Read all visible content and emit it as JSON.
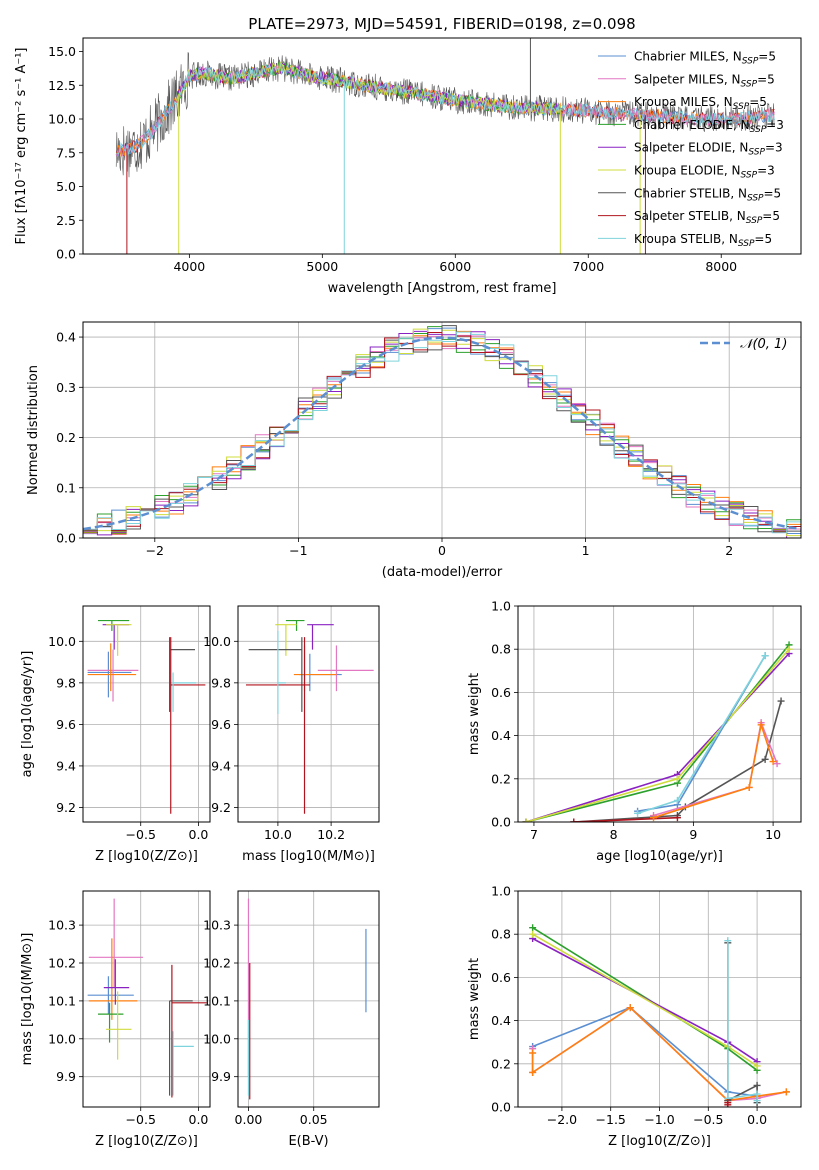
{
  "colors": {
    "Chabrier MILES": "#5b8fd1",
    "Salpeter MILES": "#e377c2",
    "Kroupa MILES": "#ff7f0e",
    "Chabrier ELODIE": "#2ca02c",
    "Salpeter ELODIE": "#8a22c2",
    "Kroupa ELODIE": "#cfdc3c",
    "Chabrier STELIB": "#555555",
    "Salpeter STELIB": "#b0141e",
    "Kroupa STELIB": "#7fd3dc"
  },
  "chart_data": [
    {
      "id": "spectrum",
      "type": "line",
      "title": "PLATE=2973, MJD=54591, FIBERID=0198, z=0.098",
      "xlabel": "wavelength [Angstrom, rest frame]",
      "ylabel": "Flux [fλ10⁻¹⁷ erg cm⁻² s⁻¹ A⁻¹]",
      "xlim": [
        3200,
        8600
      ],
      "ylim": [
        0,
        16
      ],
      "xticks": [
        4000,
        5000,
        6000,
        7000,
        8000
      ],
      "yticks": [
        0.0,
        2.5,
        5.0,
        7.5,
        10.0,
        12.5,
        15.0
      ],
      "grid": false,
      "legend_position": "upper right",
      "legend": [
        "Chabrier MILES, N_SSP=5",
        "Salpeter MILES, N_SSP=5",
        "Kroupa MILES, N_SSP=5",
        "Chabrier ELODIE, N_SSP=3",
        "Salpeter ELODIE, N_SSP=3",
        "Kroupa ELODIE, N_SSP=3",
        "Chabrier STELIB, N_SSP=5",
        "Salpeter STELIB, N_SSP=5",
        "Kroupa STELIB, N_SSP=5"
      ],
      "continuum": [
        [
          3450,
          7.6
        ],
        [
          3600,
          8.0
        ],
        [
          3700,
          8.8
        ],
        [
          3800,
          10.2
        ],
        [
          3900,
          11.5
        ],
        [
          4000,
          13.2
        ],
        [
          4100,
          13.4
        ],
        [
          4300,
          13.0
        ],
        [
          4500,
          13.4
        ],
        [
          4700,
          13.8
        ],
        [
          4900,
          13.2
        ],
        [
          5100,
          12.9
        ],
        [
          5300,
          12.5
        ],
        [
          5500,
          12.2
        ],
        [
          5700,
          11.9
        ],
        [
          6000,
          11.4
        ],
        [
          6300,
          11.0
        ],
        [
          6600,
          10.8
        ],
        [
          7000,
          10.6
        ],
        [
          7400,
          10.3
        ],
        [
          7800,
          10.0
        ],
        [
          8100,
          10.0
        ],
        [
          8400,
          10.3
        ]
      ],
      "features": [
        {
          "series": "Salpeter STELIB",
          "wl": 3530,
          "depth_to": 0
        },
        {
          "series": "Kroupa ELODIE",
          "wl": 3920,
          "depth_to": 0
        },
        {
          "series": "Kroupa STELIB",
          "wl": 5165,
          "depth_to": 0
        },
        {
          "series": "Kroupa ELODIE",
          "wl": 6790,
          "depth_to": 0
        },
        {
          "series": "Kroupa ELODIE",
          "wl": 7390,
          "depth_to": 0
        },
        {
          "series": "Salpeter STELIB",
          "wl": 7430,
          "depth_to": 0
        },
        {
          "series": "Chabrier STELIB",
          "wl": 6565,
          "depth_to": 16
        }
      ]
    },
    {
      "id": "residuals",
      "type": "step",
      "xlabel": "(data-model)/error",
      "ylabel": "Normed distribution",
      "xlim": [
        -2.5,
        2.5
      ],
      "ylim": [
        0,
        0.43
      ],
      "xticks": [
        -2,
        -1,
        0,
        1,
        2
      ],
      "yticks": [
        0.0,
        0.1,
        0.2,
        0.3,
        0.4
      ],
      "grid": true,
      "legend_position": "upper right",
      "reference": {
        "label": "𝒩(0, 1)",
        "mean": 0,
        "sigma": 1,
        "color": "#5b8fd1"
      }
    },
    {
      "id": "age-vs-Z",
      "type": "errorbar",
      "xlabel": "Z [log10(Z/Z⊙)]",
      "ylabel": "age  [log10(age/yr)]",
      "xlim": [
        -1.0,
        0.1
      ],
      "ylim": [
        9.13,
        10.17
      ],
      "xticks": [
        -0.5,
        0.0
      ],
      "yticks": [
        9.2,
        9.4,
        9.6,
        9.8,
        10.0
      ],
      "grid": true,
      "points": [
        {
          "series": "Chabrier MILES",
          "x": -0.78,
          "y": 9.85,
          "xerr": [
            0.18,
            0.2
          ],
          "yerr": [
            0.12,
            0.1
          ]
        },
        {
          "series": "Salpeter MILES",
          "x": -0.74,
          "y": 9.86,
          "xerr": [
            0.22,
            0.22
          ],
          "yerr": [
            0.15,
            0.1
          ]
        },
        {
          "series": "Kroupa MILES",
          "x": -0.76,
          "y": 9.84,
          "xerr": [
            0.2,
            0.22
          ],
          "yerr": [
            0.08,
            0.15
          ]
        },
        {
          "series": "Chabrier ELODIE",
          "x": -0.75,
          "y": 10.1,
          "xerr": [
            0.12,
            0.15
          ],
          "yerr": [
            0.05,
            0.0
          ]
        },
        {
          "series": "Salpeter ELODIE",
          "x": -0.73,
          "y": 10.08,
          "xerr": [
            0.1,
            0.13
          ],
          "yerr": [
            0.12,
            0.0
          ]
        },
        {
          "series": "Kroupa ELODIE",
          "x": -0.7,
          "y": 10.08,
          "xerr": [
            0.1,
            0.12
          ],
          "yerr": [
            0.15,
            0.0
          ]
        },
        {
          "series": "Chabrier STELIB",
          "x": -0.25,
          "y": 9.96,
          "xerr": [
            0.0,
            0.22
          ],
          "yerr": [
            0.3,
            0.06
          ]
        },
        {
          "series": "Salpeter STELIB",
          "x": -0.24,
          "y": 9.79,
          "xerr": [
            0.0,
            0.3
          ],
          "yerr": [
            0.62,
            0.23
          ]
        },
        {
          "series": "Kroupa STELIB",
          "x": -0.22,
          "y": 9.8,
          "xerr": [
            0.0,
            0.2
          ],
          "yerr": [
            0.14,
            0.05
          ]
        }
      ]
    },
    {
      "id": "age-vs-mass",
      "type": "errorbar",
      "xlabel": "mass [log10(M/M⊙)]",
      "ylabel": "",
      "xlim": [
        9.85,
        10.38
      ],
      "ylim": [
        9.13,
        10.17
      ],
      "xticks": [
        10.0,
        10.2
      ],
      "yticks": [
        9.2,
        9.4,
        9.6,
        9.8,
        10.0
      ],
      "grid": true,
      "points": [
        {
          "series": "Chabrier MILES",
          "x": 10.12,
          "y": 9.84,
          "xerr": [
            0.04,
            0.12
          ],
          "yerr": [
            0.08,
            0.1
          ]
        },
        {
          "series": "Salpeter MILES",
          "x": 10.22,
          "y": 9.86,
          "xerr": [
            0.07,
            0.14
          ],
          "yerr": [
            0.1,
            0.12
          ]
        },
        {
          "series": "Kroupa MILES",
          "x": 10.1,
          "y": 9.84,
          "xerr": [
            0.04,
            0.12
          ],
          "yerr": [
            0.08,
            0.14
          ]
        },
        {
          "series": "Chabrier ELODIE",
          "x": 10.07,
          "y": 10.1,
          "xerr": [
            0.04,
            0.03
          ],
          "yerr": [
            0.05,
            0.0
          ]
        },
        {
          "series": "Salpeter ELODIE",
          "x": 10.13,
          "y": 10.08,
          "xerr": [
            0.02,
            0.08
          ],
          "yerr": [
            0.12,
            0.0
          ]
        },
        {
          "series": "Kroupa ELODIE",
          "x": 10.03,
          "y": 10.08,
          "xerr": [
            0.04,
            0.04
          ],
          "yerr": [
            0.15,
            0.0
          ]
        },
        {
          "series": "Chabrier STELIB",
          "x": 10.09,
          "y": 9.96,
          "xerr": [
            0.2,
            0.0
          ],
          "yerr": [
            0.3,
            0.06
          ]
        },
        {
          "series": "Salpeter STELIB",
          "x": 10.1,
          "y": 9.79,
          "xerr": [
            0.22,
            0.02
          ],
          "yerr": [
            0.62,
            0.23
          ]
        },
        {
          "series": "Kroupa STELIB",
          "x": 10.0,
          "y": 9.8,
          "xerr": [
            0.0,
            0.03
          ],
          "yerr": [
            0.15,
            0.25
          ]
        }
      ]
    },
    {
      "id": "mw-vs-age",
      "type": "line",
      "xlabel": "age  [log10(age/yr)]",
      "ylabel": "mass weight",
      "xlim": [
        6.8,
        10.35
      ],
      "ylim": [
        0,
        1.0
      ],
      "xticks": [
        7,
        8,
        9,
        10
      ],
      "yticks": [
        0.0,
        0.2,
        0.4,
        0.6,
        0.8,
        1.0
      ],
      "grid": true,
      "series": [
        {
          "name": "Chabrier ELODIE",
          "x": [
            6.9,
            8.8,
            10.2
          ],
          "y": [
            0.0,
            0.18,
            0.82
          ]
        },
        {
          "name": "Salpeter ELODIE",
          "x": [
            6.9,
            8.8,
            10.2
          ],
          "y": [
            0.0,
            0.22,
            0.78
          ]
        },
        {
          "name": "Kroupa ELODIE",
          "x": [
            6.9,
            8.8,
            10.2
          ],
          "y": [
            0.0,
            0.2,
            0.8
          ]
        },
        {
          "name": "Chabrier MILES",
          "x": [
            8.3,
            8.8,
            9.9
          ],
          "y": [
            0.05,
            0.08,
            0.77
          ]
        },
        {
          "name": "Kroupa STELIB",
          "x": [
            8.3,
            8.8,
            9.9
          ],
          "y": [
            0.04,
            0.1,
            0.77
          ]
        },
        {
          "name": "Chabrier STELIB",
          "x": [
            7.5,
            8.8,
            8.9,
            9.9,
            10.1
          ],
          "y": [
            0.0,
            0.03,
            0.07,
            0.29,
            0.56
          ]
        },
        {
          "name": "Salpeter STELIB",
          "x": [
            7.5,
            8.8
          ],
          "y": [
            0.0,
            0.02
          ]
        },
        {
          "name": "Salpeter MILES",
          "x": [
            8.5,
            9.7,
            9.85,
            10.05
          ],
          "y": [
            0.03,
            0.16,
            0.46,
            0.27
          ]
        },
        {
          "name": "Kroupa MILES",
          "x": [
            8.5,
            9.7,
            9.85,
            10.0
          ],
          "y": [
            0.02,
            0.16,
            0.45,
            0.28
          ]
        }
      ]
    },
    {
      "id": "mass-vs-Z",
      "type": "errorbar",
      "xlabel": "Z [log10(Z/Z⊙)]",
      "ylabel": "mass [log10(M/M⊙)]",
      "xlim": [
        -1.0,
        0.1
      ],
      "ylim": [
        9.82,
        10.39
      ],
      "xticks": [
        -0.5,
        0.0
      ],
      "yticks": [
        9.9,
        10.0,
        10.1,
        10.2,
        10.3
      ],
      "grid": true,
      "points": [
        {
          "series": "Chabrier MILES",
          "x": -0.78,
          "y": 10.115,
          "xerr": [
            0.18,
            0.22
          ],
          "yerr": [
            0.05,
            0.05
          ]
        },
        {
          "series": "Salpeter MILES",
          "x": -0.73,
          "y": 10.215,
          "xerr": [
            0.22,
            0.25
          ],
          "yerr": [
            0.08,
            0.155
          ]
        },
        {
          "series": "Kroupa MILES",
          "x": -0.75,
          "y": 10.1,
          "xerr": [
            0.2,
            0.22
          ],
          "yerr": [
            0.05,
            0.165
          ]
        },
        {
          "series": "Chabrier ELODIE",
          "x": -0.77,
          "y": 10.065,
          "xerr": [
            0.1,
            0.12
          ],
          "yerr": [
            0.075,
            0.03
          ]
        },
        {
          "series": "Salpeter ELODIE",
          "x": -0.72,
          "y": 10.135,
          "xerr": [
            0.1,
            0.12
          ],
          "yerr": [
            0.045,
            0.075
          ]
        },
        {
          "series": "Kroupa ELODIE",
          "x": -0.7,
          "y": 10.025,
          "xerr": [
            0.1,
            0.12
          ],
          "yerr": [
            0.08,
            0.1
          ]
        },
        {
          "series": "Chabrier STELIB",
          "x": -0.25,
          "y": 10.1,
          "xerr": [
            0.0,
            0.2
          ],
          "yerr": [
            0.25,
            0.0
          ]
        },
        {
          "series": "Salpeter STELIB",
          "x": -0.23,
          "y": 10.095,
          "xerr": [
            0.0,
            0.3
          ],
          "yerr": [
            0.25,
            0.1
          ]
        },
        {
          "series": "Kroupa STELIB",
          "x": -0.22,
          "y": 9.98,
          "xerr": [
            0.0,
            0.18
          ],
          "yerr": [
            0.13,
            0.04
          ]
        }
      ]
    },
    {
      "id": "mass-vs-ebv",
      "type": "errorbar",
      "xlabel": "E(B-V)",
      "ylabel": "",
      "xlim": [
        -0.008,
        0.1
      ],
      "ylim": [
        9.82,
        10.39
      ],
      "xticks": [
        0.0,
        0.05
      ],
      "yticks": [
        9.9,
        10.0,
        10.1,
        10.2,
        10.3
      ],
      "grid": true,
      "points": [
        {
          "series": "Salpeter MILES",
          "x": 0.0,
          "y": 10.2,
          "xerr": [
            0,
            0
          ],
          "yerr": [
            0.3,
            0.17
          ]
        },
        {
          "series": "Salpeter STELIB",
          "x": 0.001,
          "y": 10.1,
          "xerr": [
            0,
            0
          ],
          "yerr": [
            0.26,
            0.1
          ]
        },
        {
          "series": "Kroupa STELIB",
          "x": 0.0,
          "y": 10.0,
          "xerr": [
            0,
            0
          ],
          "yerr": [
            0.15,
            0.05
          ]
        },
        {
          "series": "Chabrier MILES",
          "x": 0.09,
          "y": 10.18,
          "xerr": [
            0,
            0
          ],
          "yerr": [
            0.11,
            0.11
          ]
        }
      ]
    },
    {
      "id": "mw-vs-Z",
      "type": "line",
      "xlabel": "Z [log10(Z/Z⊙)]",
      "ylabel": "mass weight",
      "xlim": [
        -2.45,
        0.45
      ],
      "ylim": [
        0,
        1.0
      ],
      "xticks": [
        -2.0,
        -1.5,
        -1.0,
        -0.5,
        0.0
      ],
      "yticks": [
        0.0,
        0.2,
        0.4,
        0.6,
        0.8,
        1.0
      ],
      "grid": true,
      "series": [
        {
          "name": "Chabrier ELODIE",
          "x": [
            -2.3,
            -0.3,
            0.0
          ],
          "y": [
            0.83,
            0.27,
            0.17
          ]
        },
        {
          "name": "Salpeter ELODIE",
          "x": [
            -2.3,
            -0.3,
            0.0
          ],
          "y": [
            0.78,
            0.3,
            0.21
          ]
        },
        {
          "name": "Kroupa ELODIE",
          "x": [
            -2.3,
            -0.3,
            0.0
          ],
          "y": [
            0.8,
            0.28,
            0.19
          ]
        },
        {
          "name": "Chabrier MILES",
          "x": [
            -2.3,
            -1.3,
            -0.3,
            0.0
          ],
          "y": [
            0.28,
            0.46,
            0.07,
            0.05
          ]
        },
        {
          "name": "Salpeter MILES",
          "x": [
            -2.3,
            -2.3,
            -1.3,
            -0.3,
            0.0,
            0.3
          ],
          "y": [
            0.27,
            0.16,
            0.46,
            0.03,
            0.04,
            0.07
          ]
        },
        {
          "name": "Kroupa MILES",
          "x": [
            -2.3,
            -2.3,
            -1.3,
            -0.3,
            0.0,
            0.3
          ],
          "y": [
            0.25,
            0.16,
            0.46,
            0.03,
            0.05,
            0.07
          ]
        },
        {
          "name": "Chabrier STELIB",
          "x": [
            -0.3,
            -0.3,
            0.0,
            0.0
          ],
          "y": [
            0.76,
            0.03,
            0.1,
            0.02
          ]
        },
        {
          "name": "Kroupa STELIB",
          "x": [
            -0.3,
            -0.3,
            0.0,
            0.0
          ],
          "y": [
            0.77,
            0.04,
            0.06,
            0.03
          ]
        },
        {
          "name": "Salpeter STELIB",
          "x": [
            -0.3,
            -0.3
          ],
          "y": [
            0.02,
            0.01
          ]
        }
      ]
    }
  ]
}
